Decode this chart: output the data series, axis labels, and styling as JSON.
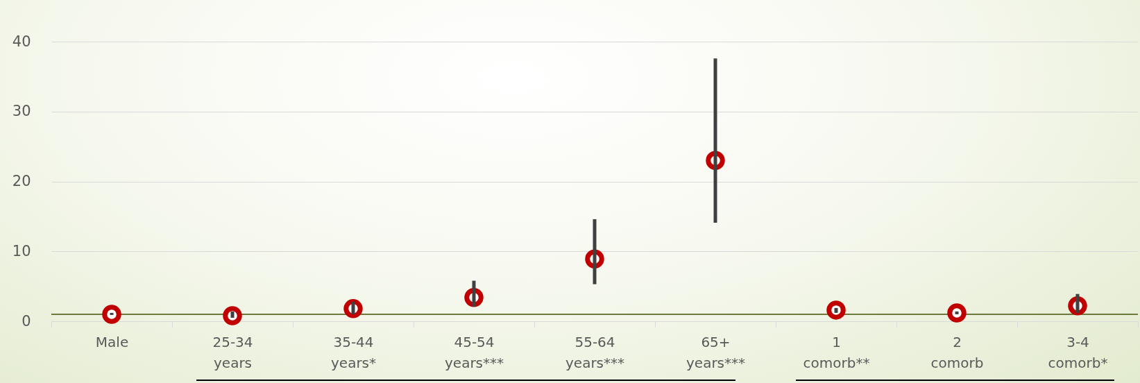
{
  "chart_data": {
    "type": "scatter",
    "categories": [
      "Male",
      "25-34 years",
      "35-44 years*",
      "45-54 years***",
      "55-64 years***",
      "65+ years***",
      "1 comorb**",
      "2 comorb",
      "3-4 comorb*"
    ],
    "series": [
      {
        "color": "#c00000",
        "values": [
          1.0,
          0.8,
          1.8,
          3.4,
          8.9,
          23.0,
          1.6,
          1.2,
          2.2
        ],
        "errors": [
          [
            0.9,
            1.2
          ],
          [
            0.5,
            1.4
          ],
          [
            1.0,
            2.8
          ],
          [
            2.1,
            5.8
          ],
          [
            5.3,
            14.6
          ],
          [
            14.1,
            37.6
          ],
          [
            1.2,
            1.9
          ],
          [
            1.0,
            1.4
          ],
          [
            1.2,
            3.9
          ]
        ]
      }
    ],
    "ylim": [
      0,
      40
    ],
    "yticks": [
      0,
      10,
      20,
      30,
      40
    ],
    "grid": "y",
    "marker": "circle",
    "ref_lines": [
      {
        "axis": "y",
        "value": 1,
        "color": "#6b7a3a"
      }
    ]
  }
}
